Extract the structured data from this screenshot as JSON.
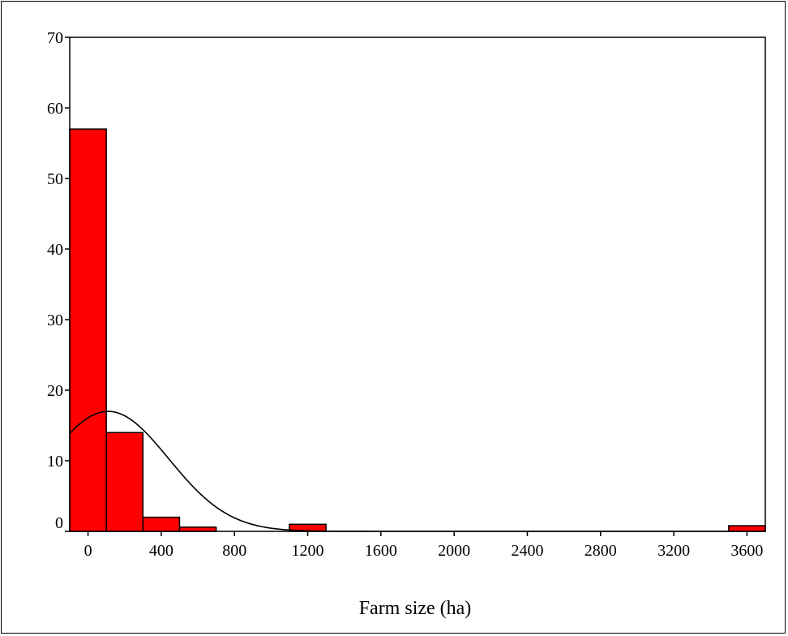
{
  "chart_data": {
    "type": "bar",
    "title": "",
    "xlabel": "Farm size (ha)",
    "ylabel": "",
    "xlim": [
      -100,
      3700
    ],
    "ylim": [
      0,
      70
    ],
    "x_ticks": [
      0,
      400,
      800,
      1200,
      1600,
      2000,
      2400,
      2800,
      3200,
      3600
    ],
    "y_ticks": [
      0,
      10,
      20,
      30,
      40,
      50,
      60,
      70
    ],
    "bins": [
      {
        "start": -100,
        "end": 100,
        "value": 57
      },
      {
        "start": 100,
        "end": 300,
        "value": 14
      },
      {
        "start": 300,
        "end": 500,
        "value": 2
      },
      {
        "start": 500,
        "end": 700,
        "value": 0.6
      },
      {
        "start": 1100,
        "end": 1300,
        "value": 1
      },
      {
        "start": 3500,
        "end": 3700,
        "value": 0.8
      }
    ],
    "normal_curve": {
      "mean": 110,
      "sd": 330,
      "peak": 17
    },
    "grid": false,
    "bar_color": "#ff0000",
    "bar_edge_color": "#000000",
    "curve_color": "#000000"
  }
}
